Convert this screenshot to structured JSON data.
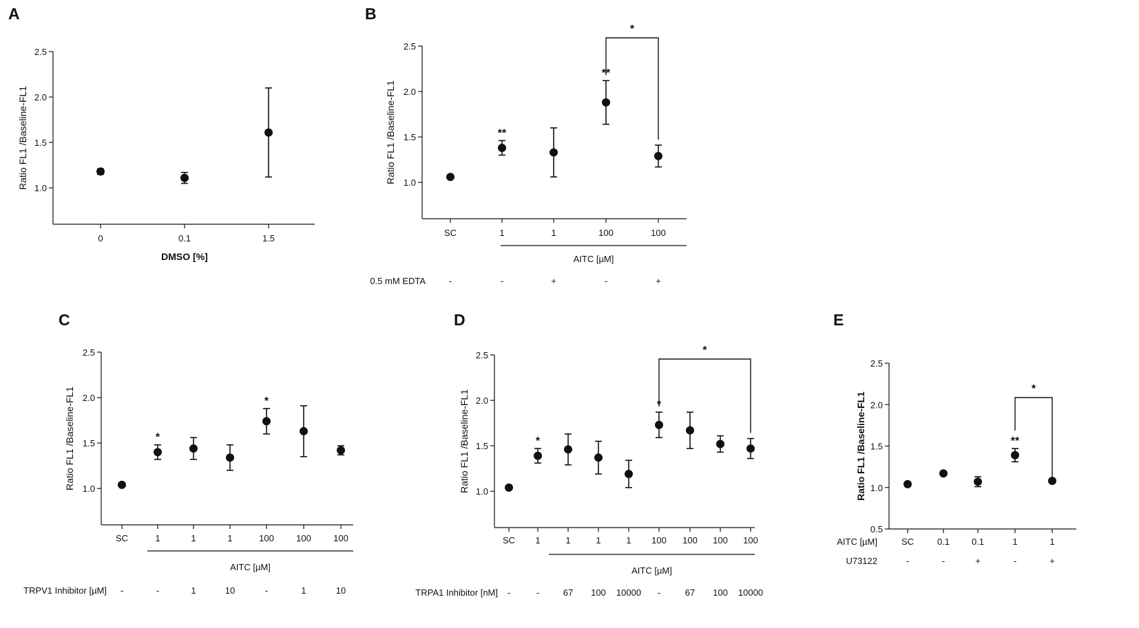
{
  "chart_data": [
    {
      "type": "scatter",
      "panel": "A",
      "ylabel": "Ratio FL1 /Baseline-FL1",
      "ylim": [
        0.6,
        2.5
      ],
      "yticks": [
        "1.0",
        "1.5",
        "2.0",
        "2.5"
      ],
      "categories": [
        "0",
        "0.1",
        "1.5"
      ],
      "values": [
        1.18,
        1.11,
        1.61
      ],
      "errors": [
        0.03,
        0.06,
        0.49
      ],
      "stars": [
        "",
        "",
        ""
      ],
      "xlabel": "DMSO [%]",
      "group_label": "",
      "conditions": []
    },
    {
      "type": "scatter",
      "panel": "B",
      "ylabel": "Ratio FL1 /Baseline-FL1",
      "ylim": [
        0.6,
        2.5
      ],
      "yticks": [
        "1.0",
        "1.5",
        "2.0",
        "2.5"
      ],
      "categories": [
        "SC",
        "1",
        "1",
        "100",
        "100"
      ],
      "values": [
        1.06,
        1.38,
        1.33,
        1.88,
        1.29
      ],
      "errors": [
        0.02,
        0.08,
        0.27,
        0.24,
        0.12
      ],
      "stars": [
        "",
        "**",
        "",
        "**",
        ""
      ],
      "xlabel": "",
      "group_label": "AITC [µM]",
      "conditions": [
        {
          "label": "0.5 mM EDTA",
          "values": [
            "-",
            "-",
            "+",
            "-",
            "+"
          ]
        }
      ],
      "brackets": [
        {
          "from": 3,
          "to": 4,
          "label": "*"
        }
      ]
    },
    {
      "type": "scatter",
      "panel": "C",
      "ylabel": "Ratio FL1 /Baseline-FL1",
      "ylim": [
        0.6,
        2.5
      ],
      "yticks": [
        "1.0",
        "1.5",
        "2.0",
        "2.5"
      ],
      "categories": [
        "SC",
        "1",
        "1",
        "1",
        "100",
        "100",
        "100"
      ],
      "values": [
        1.04,
        1.4,
        1.44,
        1.34,
        1.74,
        1.63,
        1.42
      ],
      "errors": [
        0.01,
        0.08,
        0.12,
        0.14,
        0.14,
        0.28,
        0.05
      ],
      "stars": [
        "",
        "*",
        "",
        "",
        "*",
        "",
        ""
      ],
      "xlabel": "",
      "group_label": "AITC [µM]",
      "conditions": [
        {
          "label": "TRPV1 Inhibitor [µM]",
          "values": [
            "-",
            "-",
            "1",
            "10",
            "-",
            "1",
            "10"
          ]
        }
      ]
    },
    {
      "type": "scatter",
      "panel": "D",
      "ylabel": "Ratio FL1 /Baseline-FL1",
      "ylim": [
        0.6,
        2.5
      ],
      "yticks": [
        "1.0",
        "1.5",
        "2.0",
        "2.5"
      ],
      "categories": [
        "SC",
        "1",
        "1",
        "1",
        "1",
        "100",
        "100",
        "100",
        "100"
      ],
      "values": [
        1.04,
        1.39,
        1.46,
        1.37,
        1.19,
        1.73,
        1.67,
        1.52,
        1.47
      ],
      "errors": [
        0.01,
        0.08,
        0.17,
        0.18,
        0.15,
        0.14,
        0.2,
        0.09,
        0.11
      ],
      "stars": [
        "",
        "*",
        "",
        "",
        "",
        "*",
        "",
        "",
        ""
      ],
      "xlabel": "",
      "group_label": "AITC [µM]",
      "conditions": [
        {
          "label": "TRPA1 Inhibitor [nM]",
          "values": [
            "-",
            "-",
            "67",
            "100",
            "10000",
            "-",
            "67",
            "100",
            "10000"
          ]
        }
      ],
      "brackets": [
        {
          "from": 5,
          "to": 8,
          "label": "*"
        }
      ]
    },
    {
      "type": "scatter",
      "panel": "E",
      "ylabel": "Ratio FL1 /Baseline-FL1",
      "ylim": [
        0.5,
        2.5
      ],
      "yticks": [
        "0.5",
        "1.0",
        "1.5",
        "2.0",
        "2.5"
      ],
      "categories": [
        "SC",
        "0.1",
        "0.1",
        "1",
        "1"
      ],
      "category_row_label": "AITC [µM]",
      "values": [
        1.04,
        1.17,
        1.07,
        1.39,
        1.08
      ],
      "errors": [
        0.01,
        0.01,
        0.06,
        0.08,
        0.01
      ],
      "stars": [
        "",
        "",
        "",
        "**",
        ""
      ],
      "xlabel": "",
      "group_label": "",
      "conditions": [
        {
          "label": "U73122",
          "values": [
            "-",
            "-",
            "+",
            "-",
            "+"
          ]
        }
      ],
      "brackets": [
        {
          "from": 3,
          "to": 4,
          "label": "*"
        }
      ]
    }
  ]
}
